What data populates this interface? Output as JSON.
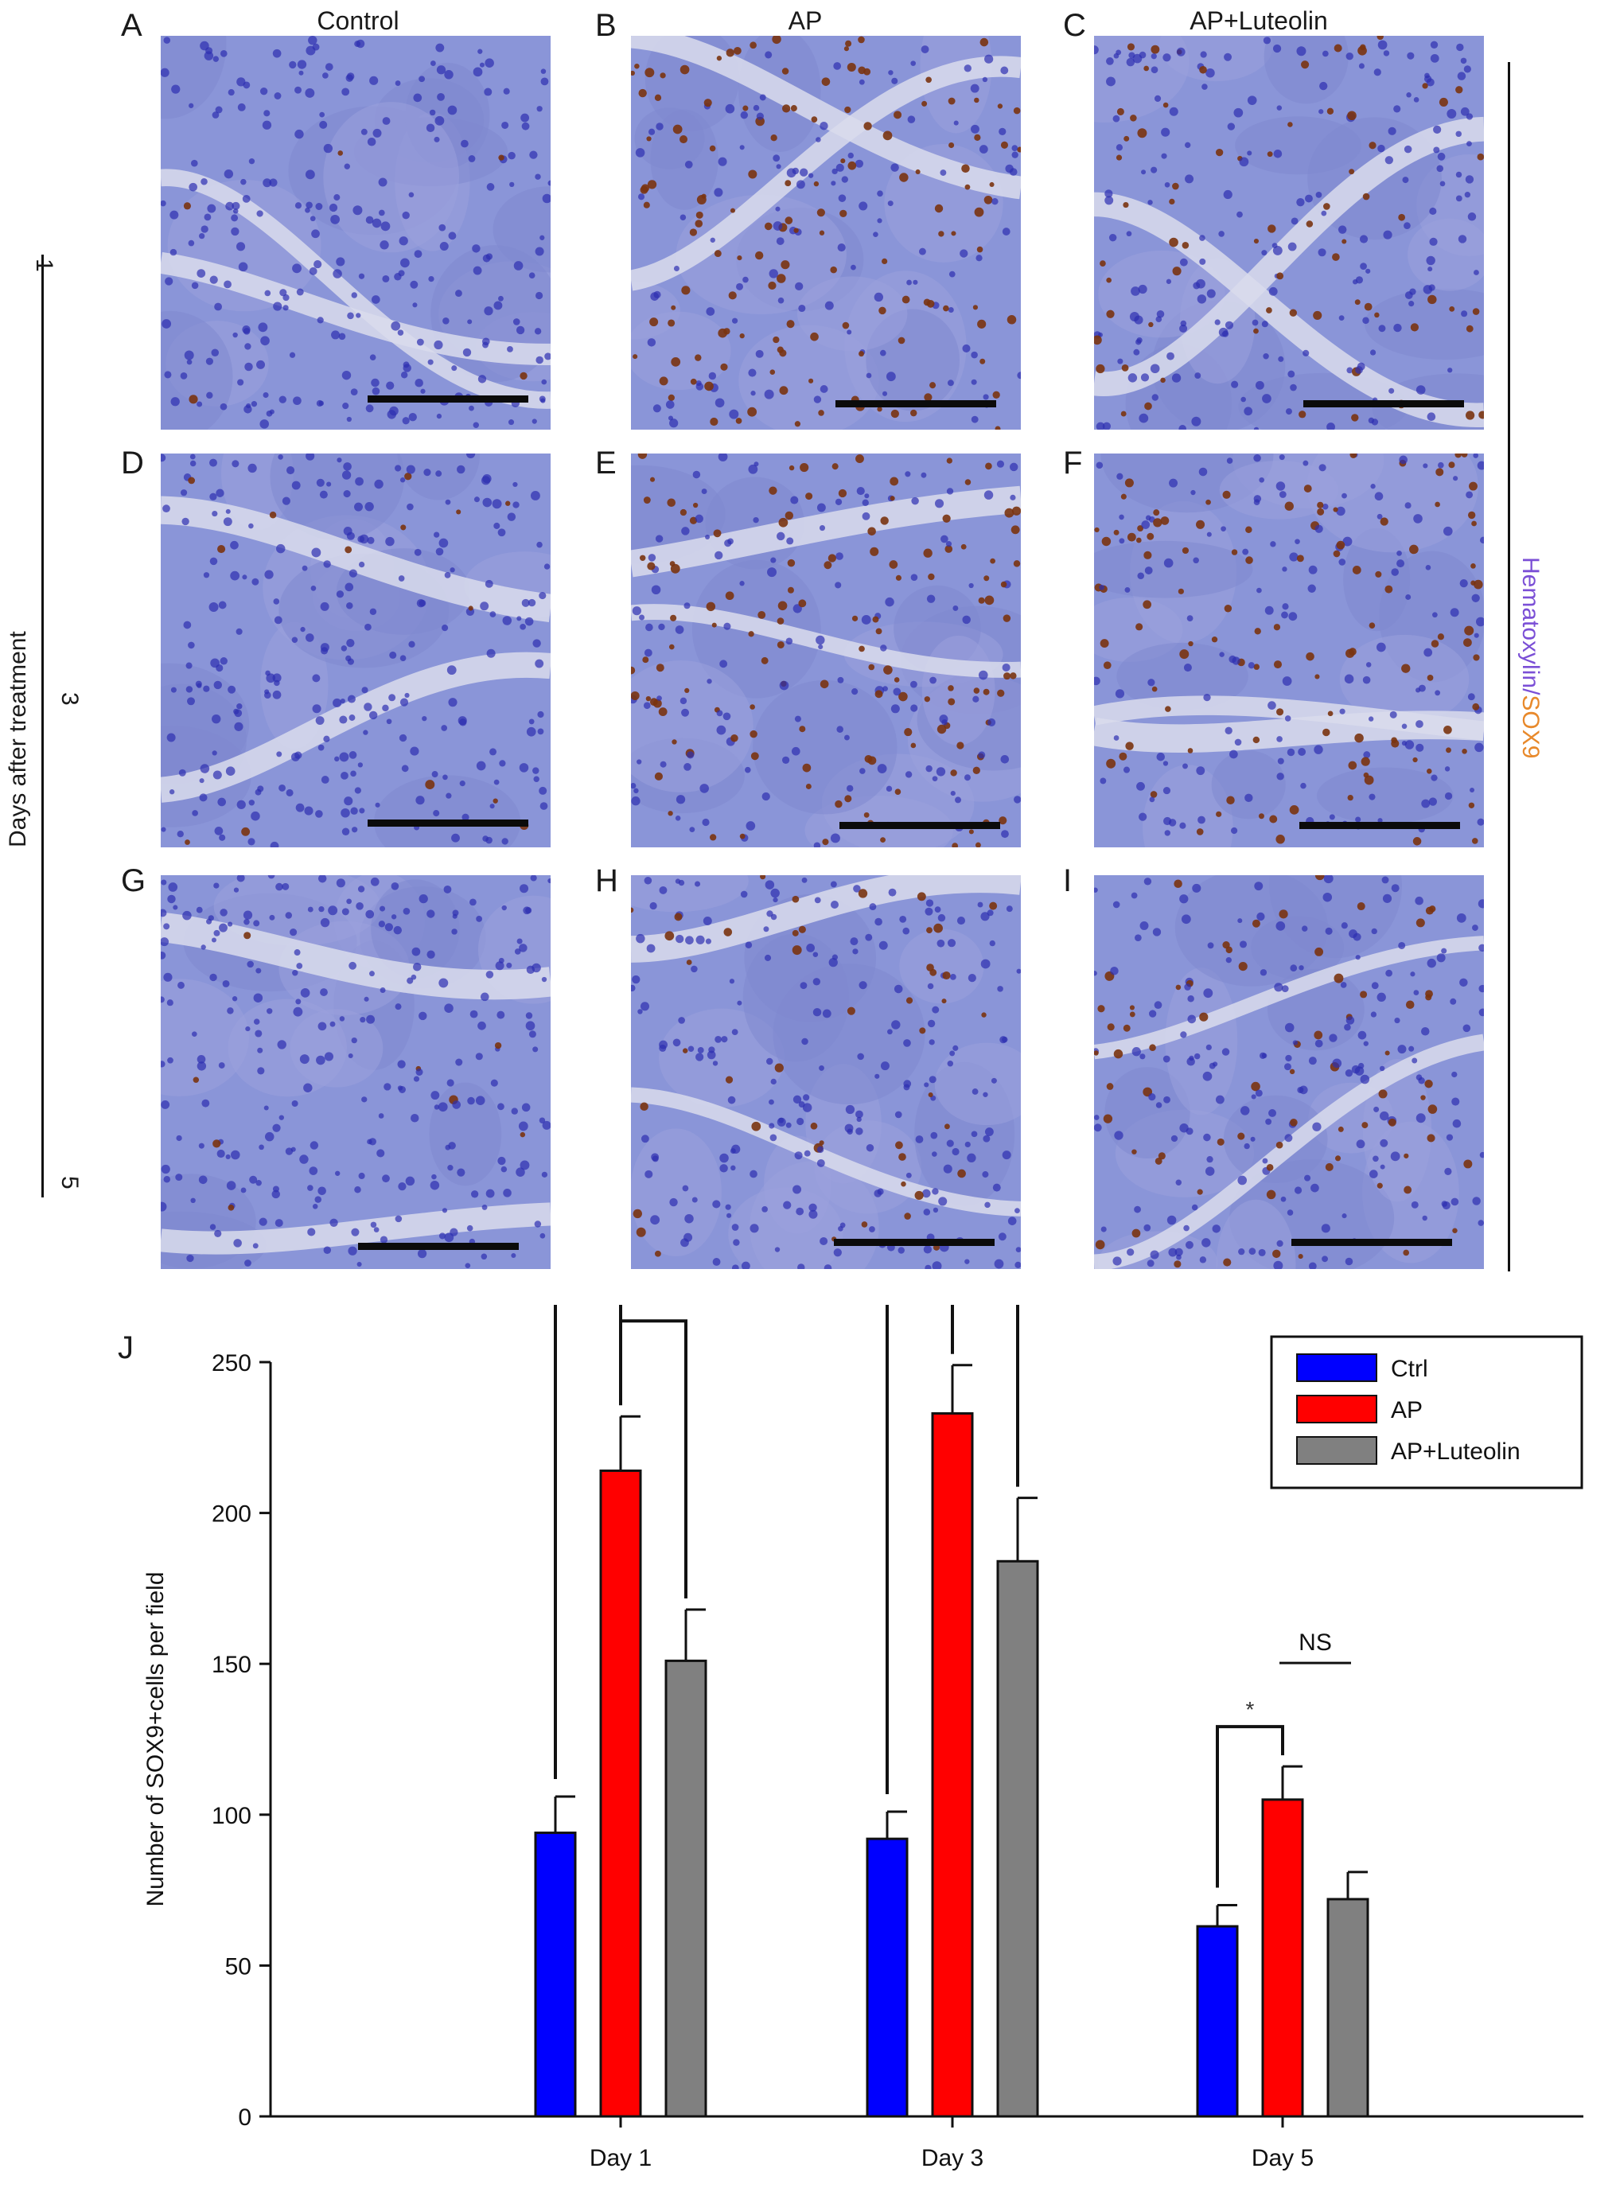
{
  "figure": {
    "column_headers": [
      "Control",
      "AP",
      "AP+Luteolin"
    ],
    "panel_letters": [
      "A",
      "B",
      "C",
      "D",
      "E",
      "F",
      "G",
      "H",
      "I"
    ],
    "days_axis": {
      "label": "Days after treatment",
      "ticks": [
        "1",
        "3",
        "5"
      ]
    },
    "stain_label": {
      "part1": "Hematoxylin",
      "separator": "/",
      "part2": "SOX9"
    },
    "colors": {
      "hematoxylin_label": "#7b4fd6",
      "sox9_label": "#e8892b",
      "tissue": "#8a95d8",
      "nuclei_blue": "#2d2fb0",
      "nuclei_brown": "#7a3310"
    },
    "chart_panel_letter": "J"
  },
  "chart_data": {
    "type": "bar",
    "categories": [
      "Day 1",
      "Day 3",
      "Day 5"
    ],
    "series": [
      {
        "name": "Ctrl",
        "color": "#0000ff",
        "values": [
          94,
          92,
          63
        ],
        "errors": [
          12,
          9,
          7
        ]
      },
      {
        "name": "AP",
        "color": "#ff0000",
        "values": [
          214,
          233,
          105
        ],
        "errors": [
          18,
          16,
          11
        ]
      },
      {
        "name": "AP+Luteolin",
        "color": "#808080",
        "values": [
          151,
          184,
          72
        ],
        "errors": [
          17,
          21,
          9
        ]
      }
    ],
    "ylabel": "Number of SOX9+cells per field",
    "xlabel": "",
    "ylim": [
      0,
      250
    ],
    "yticks": [
      0,
      50,
      100,
      150,
      200,
      250
    ],
    "legend_position": "top-right",
    "significance": [
      {
        "category": "Day 1",
        "from": "Ctrl",
        "to": "AP",
        "label": "*"
      },
      {
        "category": "Day 1",
        "from": "AP",
        "to": "AP+Luteolin",
        "label": "*"
      },
      {
        "category": "Day 3",
        "from": "Ctrl",
        "to": "AP",
        "label": "*"
      },
      {
        "category": "Day 3",
        "from": "AP",
        "to": "AP+Luteolin",
        "label": "*"
      },
      {
        "category": "Day 5",
        "from": "Ctrl",
        "to": "AP",
        "label": "*"
      },
      {
        "category": "Day 5",
        "from": "AP",
        "to": "AP+Luteolin",
        "label": "NS"
      }
    ]
  }
}
